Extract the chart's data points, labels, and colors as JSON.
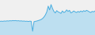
{
  "values": [
    0.1,
    0.11,
    0.1,
    0.12,
    0.11,
    0.13,
    0.12,
    0.14,
    0.13,
    0.15,
    0.14,
    0.15,
    0.13,
    0.14,
    0.12,
    0.13,
    0.11,
    0.12,
    0.1,
    0.11,
    0.09,
    0.11,
    0.1,
    -0.55,
    0.08,
    0.1,
    0.12,
    0.15,
    0.18,
    0.22,
    0.28,
    0.38,
    0.52,
    0.72,
    1.1,
    0.85,
    1.2,
    0.95,
    0.75,
    0.65,
    0.8,
    0.72,
    0.68,
    0.62,
    0.78,
    0.68,
    0.72,
    0.85,
    0.75,
    0.82,
    0.65,
    0.7,
    0.78,
    0.72,
    0.68,
    0.75,
    0.7,
    0.78,
    0.72,
    0.8,
    0.75,
    0.82,
    0.78,
    0.72,
    0.68,
    0.75,
    0.72,
    0.78
  ],
  "line_color": "#4aaee0",
  "fill_color": "#a8d8f0",
  "background_color": "#f0f0f0",
  "ylim_min": -0.8,
  "ylim_max": 1.5,
  "fill_baseline": -0.9
}
